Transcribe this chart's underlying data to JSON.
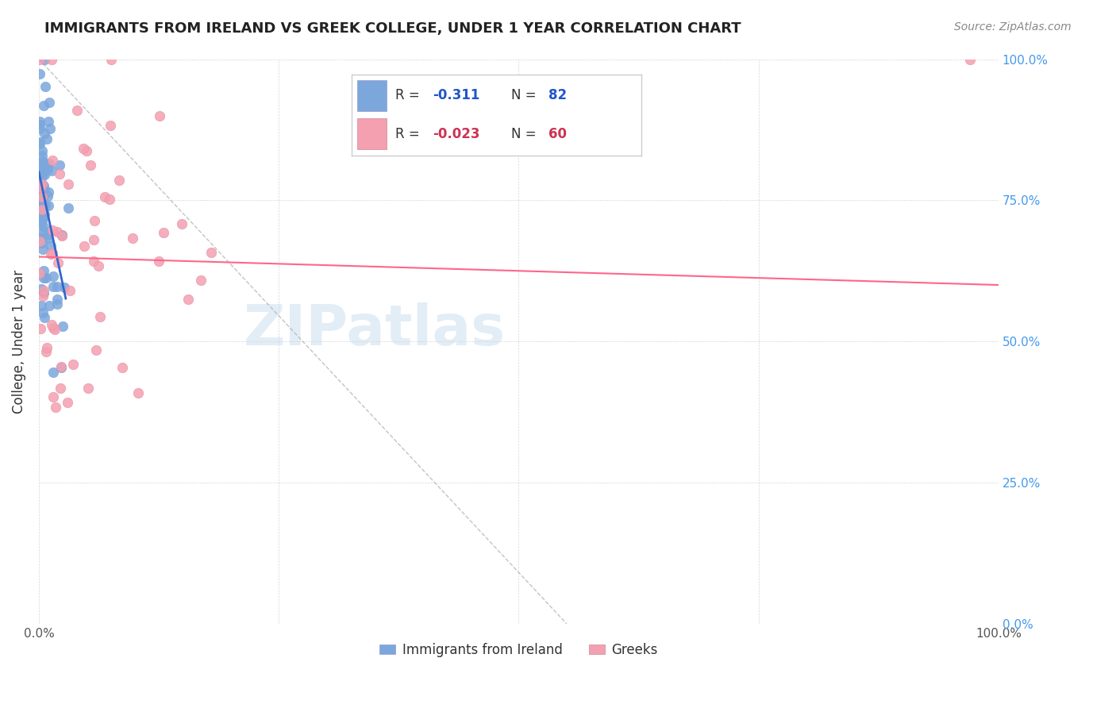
{
  "title": "IMMIGRANTS FROM IRELAND VS GREEK COLLEGE, UNDER 1 YEAR CORRELATION CHART",
  "source": "Source: ZipAtlas.com",
  "ylabel": "College, Under 1 year",
  "legend_label_blue": "Immigrants from Ireland",
  "legend_label_pink": "Greeks",
  "blue_color": "#7BA7DC",
  "pink_color": "#F4A0B0",
  "blue_line_color": "#3366CC",
  "pink_line_color": "#FF6688",
  "blue_r": -0.311,
  "blue_n": 82,
  "pink_r": -0.023,
  "pink_n": 60,
  "watermark": "ZIPatlas",
  "watermark_color": "#C8DCEF",
  "background_color": "#FFFFFF",
  "legend_blue_r_val": "-0.311",
  "legend_blue_n_val": "82",
  "legend_pink_r_val": "-0.023",
  "legend_pink_n_val": "60"
}
